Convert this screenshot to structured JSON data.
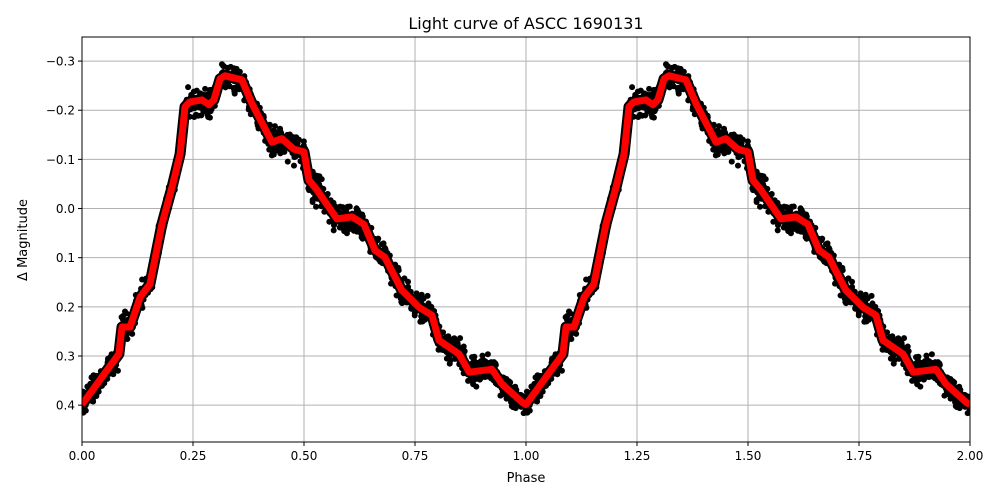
{
  "chart_data": {
    "type": "scatter",
    "title": "Light curve of ASCC 1690131",
    "xlabel": "Phase",
    "ylabel": "Δ Magnitude",
    "xlim": [
      0,
      2
    ],
    "ylim": [
      0.475,
      -0.349
    ],
    "y_inverted": true,
    "grid": true,
    "x_ticks": [
      "0.00",
      "0.25",
      "0.50",
      "0.75",
      "1.00",
      "1.25",
      "1.50",
      "1.75",
      "2.00"
    ],
    "x_tick_values": [
      0,
      0.25,
      0.5,
      0.75,
      1.0,
      1.25,
      1.5,
      1.75,
      2.0
    ],
    "y_ticks": [
      "−0.3",
      "−0.2",
      "−0.1",
      "0.0",
      "0.1",
      "0.2",
      "0.3",
      "0.4"
    ],
    "y_tick_values": [
      -0.3,
      -0.2,
      -0.1,
      0.0,
      0.1,
      0.2,
      0.3,
      0.4
    ],
    "period_repeat": 2,
    "series": [
      {
        "kind": "observations",
        "marker": "dot",
        "color": "#000000"
      },
      {
        "kind": "model",
        "color": "#ff0000",
        "outline_color": "#000000",
        "phase": [
          0,
          0.045,
          0.083,
          0.09,
          0.108,
          0.131,
          0.153,
          0.18,
          0.203,
          0.221,
          0.232,
          0.243,
          0.27,
          0.286,
          0.297,
          0.311,
          0.322,
          0.36,
          0.383,
          0.428,
          0.45,
          0.477,
          0.5,
          0.511,
          0.529,
          0.574,
          0.608,
          0.635,
          0.66,
          0.682,
          0.72,
          0.759,
          0.788,
          0.804,
          0.849,
          0.872,
          0.923,
          0.946,
          0.991,
          1.0
        ],
        "magnitude": [
          0.399,
          0.343,
          0.296,
          0.241,
          0.241,
          0.18,
          0.154,
          0.032,
          -0.044,
          -0.111,
          -0.207,
          -0.217,
          -0.221,
          -0.211,
          -0.221,
          -0.264,
          -0.27,
          -0.262,
          -0.213,
          -0.135,
          -0.142,
          -0.121,
          -0.115,
          -0.058,
          -0.038,
          0.021,
          0.017,
          0.032,
          0.085,
          0.099,
          0.166,
          0.201,
          0.217,
          0.268,
          0.296,
          0.333,
          0.327,
          0.357,
          0.394,
          0.399
        ]
      }
    ]
  }
}
